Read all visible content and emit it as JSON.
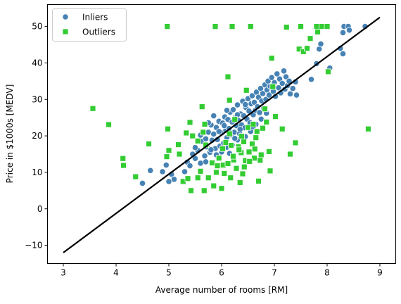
{
  "chart_data": {
    "type": "scatter",
    "xlabel": "Average number of rooms [RM]",
    "ylabel": "Price in $1000s [MEDV]",
    "xlim": [
      2.7,
      9.3
    ],
    "ylim": [
      -15,
      56
    ],
    "xticks": [
      3,
      4,
      5,
      6,
      7,
      8,
      9
    ],
    "yticks": [
      -10,
      0,
      10,
      20,
      30,
      40,
      50
    ],
    "grid": false,
    "legend_position": "top-left",
    "series": [
      {
        "name": "Inliers",
        "marker": "circle",
        "color": "#4682b4",
        "points": [
          [
            4.5,
            7
          ],
          [
            4.65,
            10.5
          ],
          [
            4.88,
            10.2
          ],
          [
            4.95,
            12
          ],
          [
            5.0,
            7.5
          ],
          [
            5.05,
            9.5
          ],
          [
            5.1,
            8.1
          ],
          [
            5.3,
            10.2
          ],
          [
            5.35,
            12.8
          ],
          [
            5.45,
            15
          ],
          [
            5.4,
            11.8
          ],
          [
            5.5,
            13.8
          ],
          [
            5.55,
            16
          ],
          [
            5.6,
            12.5
          ],
          [
            5.62,
            18.5
          ],
          [
            5.68,
            14.5
          ],
          [
            5.7,
            19.2
          ],
          [
            5.72,
            17
          ],
          [
            5.75,
            21
          ],
          [
            5.78,
            15.5
          ],
          [
            5.8,
            23
          ],
          [
            5.82,
            18.8
          ],
          [
            5.85,
            20.5
          ],
          [
            5.88,
            16.5
          ],
          [
            5.9,
            22.3
          ],
          [
            5.92,
            19
          ],
          [
            5.95,
            24
          ],
          [
            5.97,
            17.2
          ],
          [
            6.0,
            20.8
          ],
          [
            6.02,
            23.5
          ],
          [
            6.04,
            18
          ],
          [
            6.06,
            25.2
          ],
          [
            6.08,
            21.5
          ],
          [
            6.1,
            19.5
          ],
          [
            6.12,
            24.5
          ],
          [
            6.14,
            22
          ],
          [
            6.16,
            26.5
          ],
          [
            6.18,
            20.3
          ],
          [
            6.2,
            23.8
          ],
          [
            6.22,
            27.2
          ],
          [
            6.24,
            21
          ],
          [
            6.26,
            25
          ],
          [
            6.28,
            22.8
          ],
          [
            6.3,
            28.5
          ],
          [
            6.32,
            24.2
          ],
          [
            6.34,
            20.6
          ],
          [
            6.36,
            26
          ],
          [
            6.38,
            23
          ],
          [
            6.4,
            29.5
          ],
          [
            6.42,
            25.5
          ],
          [
            6.44,
            22.2
          ],
          [
            6.46,
            27.8
          ],
          [
            6.48,
            24.6
          ],
          [
            6.5,
            30.2
          ],
          [
            6.52,
            26.8
          ],
          [
            6.54,
            23.6
          ],
          [
            6.56,
            28.8
          ],
          [
            6.58,
            31
          ],
          [
            6.6,
            25.8
          ],
          [
            6.62,
            29.2
          ],
          [
            6.64,
            27
          ],
          [
            6.66,
            32
          ],
          [
            6.68,
            28
          ],
          [
            6.7,
            30.6
          ],
          [
            6.72,
            26.4
          ],
          [
            6.74,
            33
          ],
          [
            6.76,
            29.6
          ],
          [
            6.78,
            31.6
          ],
          [
            6.8,
            27.6
          ],
          [
            6.82,
            34
          ],
          [
            6.84,
            30
          ],
          [
            6.86,
            32.6
          ],
          [
            6.88,
            35
          ],
          [
            6.9,
            31.2
          ],
          [
            6.92,
            33.6
          ],
          [
            6.95,
            36
          ],
          [
            6.98,
            32.2
          ],
          [
            7.0,
            34.6
          ],
          [
            7.02,
            30.8
          ],
          [
            7.05,
            37
          ],
          [
            7.08,
            33.2
          ],
          [
            7.1,
            35.6
          ],
          [
            7.12,
            31.8
          ],
          [
            7.15,
            34.4
          ],
          [
            7.18,
            37.8
          ],
          [
            7.2,
            32.8
          ],
          [
            7.22,
            36.2
          ],
          [
            7.25,
            33.8
          ],
          [
            7.28,
            35
          ],
          [
            7.3,
            31.5
          ],
          [
            7.35,
            33
          ],
          [
            7.4,
            34.8
          ],
          [
            7.42,
            31.2
          ],
          [
            7.7,
            35.5
          ],
          [
            7.8,
            39.8
          ],
          [
            7.85,
            43.8
          ],
          [
            7.88,
            45.2
          ],
          [
            8.05,
            38.6
          ],
          [
            8.25,
            44
          ],
          [
            8.3,
            42.5
          ],
          [
            8.3,
            48.3
          ],
          [
            8.32,
            50
          ],
          [
            8.4,
            50
          ],
          [
            8.42,
            49
          ],
          [
            8.72,
            50
          ],
          [
            5.5,
            16.8
          ],
          [
            5.6,
            20.2
          ],
          [
            5.7,
            12.9
          ],
          [
            5.8,
            16.2
          ],
          [
            5.9,
            14.8
          ],
          [
            6.0,
            15.6
          ],
          [
            6.1,
            16.9
          ],
          [
            6.2,
            17.5
          ],
          [
            6.3,
            18.9
          ],
          [
            6.15,
            15.2
          ],
          [
            6.25,
            19.3
          ],
          [
            6.35,
            21.8
          ],
          [
            6.45,
            19.8
          ],
          [
            6.55,
            21.2
          ],
          [
            6.65,
            23.2
          ],
          [
            6.75,
            24.6
          ],
          [
            6.85,
            26.2
          ],
          [
            5.95,
            21.2
          ],
          [
            6.05,
            22.8
          ],
          [
            5.75,
            23.6
          ],
          [
            5.85,
            25.5
          ],
          [
            6.3,
            25.8
          ],
          [
            6.45,
            28.6
          ],
          [
            6.6,
            22.5
          ],
          [
            6.1,
            27
          ]
        ]
      },
      {
        "name": "Outliers",
        "marker": "square",
        "color": "#33cc33",
        "points": [
          [
            3.56,
            27.5
          ],
          [
            3.86,
            23.1
          ],
          [
            4.13,
            13.8
          ],
          [
            4.14,
            11.9
          ],
          [
            4.37,
            8.8
          ],
          [
            4.62,
            17.8
          ],
          [
            4.96,
            14.3
          ],
          [
            4.97,
            50
          ],
          [
            4.98,
            21.9
          ],
          [
            5.0,
            16
          ],
          [
            5.18,
            17.6
          ],
          [
            5.2,
            15
          ],
          [
            5.27,
            7.5
          ],
          [
            5.33,
            20.8
          ],
          [
            5.36,
            8.3
          ],
          [
            5.4,
            23.7
          ],
          [
            5.42,
            5
          ],
          [
            5.45,
            20
          ],
          [
            5.55,
            8.5
          ],
          [
            5.6,
            10.3
          ],
          [
            5.63,
            28
          ],
          [
            5.67,
            5
          ],
          [
            5.68,
            23.2
          ],
          [
            5.7,
            17.5
          ],
          [
            5.75,
            8.5
          ],
          [
            5.85,
            6.3
          ],
          [
            5.88,
            50
          ],
          [
            5.9,
            10
          ],
          [
            5.95,
            13.9
          ],
          [
            6.0,
            5.6
          ],
          [
            6.03,
            12
          ],
          [
            6.05,
            9.7
          ],
          [
            6.08,
            18.2
          ],
          [
            6.12,
            36.2
          ],
          [
            6.15,
            29.8
          ],
          [
            6.17,
            8.5
          ],
          [
            6.2,
            50
          ],
          [
            6.23,
            13.4
          ],
          [
            6.25,
            24.5
          ],
          [
            6.28,
            11.1
          ],
          [
            6.32,
            17
          ],
          [
            6.35,
            7.2
          ],
          [
            6.37,
            15.4
          ],
          [
            6.4,
            9.6
          ],
          [
            6.42,
            18.4
          ],
          [
            6.45,
            13.2
          ],
          [
            6.47,
            32.5
          ],
          [
            6.5,
            22.3
          ],
          [
            6.52,
            15.6
          ],
          [
            6.55,
            50
          ],
          [
            6.58,
            17.8
          ],
          [
            6.6,
            23.2
          ],
          [
            6.62,
            13.9
          ],
          [
            6.65,
            19.5
          ],
          [
            6.67,
            21.2
          ],
          [
            6.7,
            7.6
          ],
          [
            6.75,
            14.8
          ],
          [
            6.78,
            22.1
          ],
          [
            6.82,
            27.4
          ],
          [
            6.85,
            23.8
          ],
          [
            6.9,
            15.7
          ],
          [
            6.92,
            10.4
          ],
          [
            6.95,
            41.3
          ],
          [
            6.97,
            33.5
          ],
          [
            7.02,
            25.3
          ],
          [
            7.15,
            21.9
          ],
          [
            7.23,
            49.8
          ],
          [
            7.3,
            15
          ],
          [
            7.4,
            18.1
          ],
          [
            7.47,
            43.8
          ],
          [
            7.5,
            50
          ],
          [
            7.55,
            43.1
          ],
          [
            7.62,
            44
          ],
          [
            7.68,
            46.7
          ],
          [
            7.8,
            50
          ],
          [
            7.82,
            48.5
          ],
          [
            7.9,
            50
          ],
          [
            8.0,
            50
          ],
          [
            8.02,
            37.6
          ],
          [
            8.78,
            21.9
          ],
          [
            5.55,
            18.6
          ],
          [
            5.65,
            21
          ],
          [
            5.82,
            12.6
          ],
          [
            5.92,
            11.8
          ],
          [
            6.02,
            16.5
          ],
          [
            6.12,
            12.4
          ],
          [
            6.22,
            14.4
          ],
          [
            6.33,
            16.2
          ],
          [
            6.43,
            11.5
          ],
          [
            6.53,
            13
          ],
          [
            6.63,
            16.4
          ],
          [
            6.73,
            13.3
          ],
          [
            6.15,
            20.6
          ],
          [
            6.38,
            19.9
          ],
          [
            6.18,
            17.4
          ]
        ]
      }
    ],
    "regression_line": {
      "color": "#000000",
      "points": [
        [
          3,
          -12
        ],
        [
          9,
          52.5
        ]
      ]
    }
  }
}
